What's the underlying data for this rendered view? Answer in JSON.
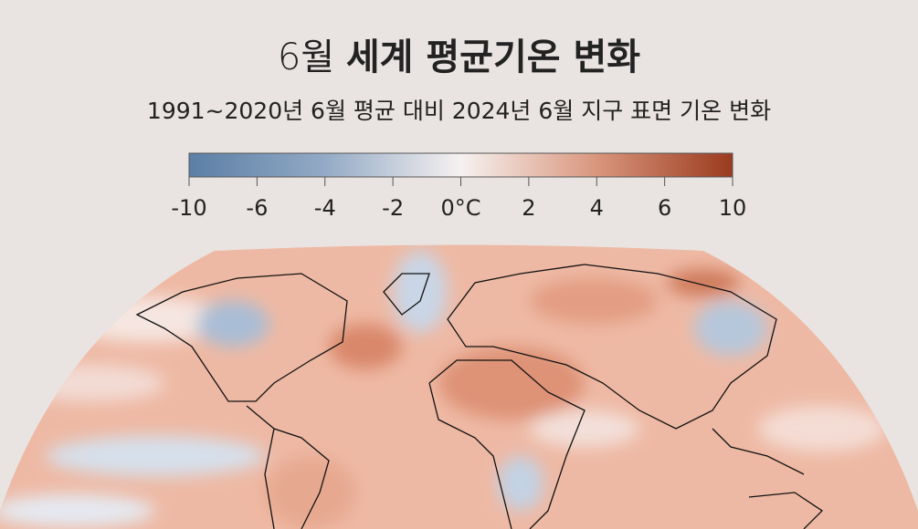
{
  "title": {
    "month": "6월",
    "main": "세계 평균기온 변화"
  },
  "subtitle": "1991~2020년 6월 평균 대비 2024년 6월 지구 표면 기온 변화",
  "legend": {
    "tick_labels": [
      "-10",
      "-6",
      "-4",
      "-2",
      "0°C",
      "2",
      "4",
      "6",
      "10"
    ]
  }
}
